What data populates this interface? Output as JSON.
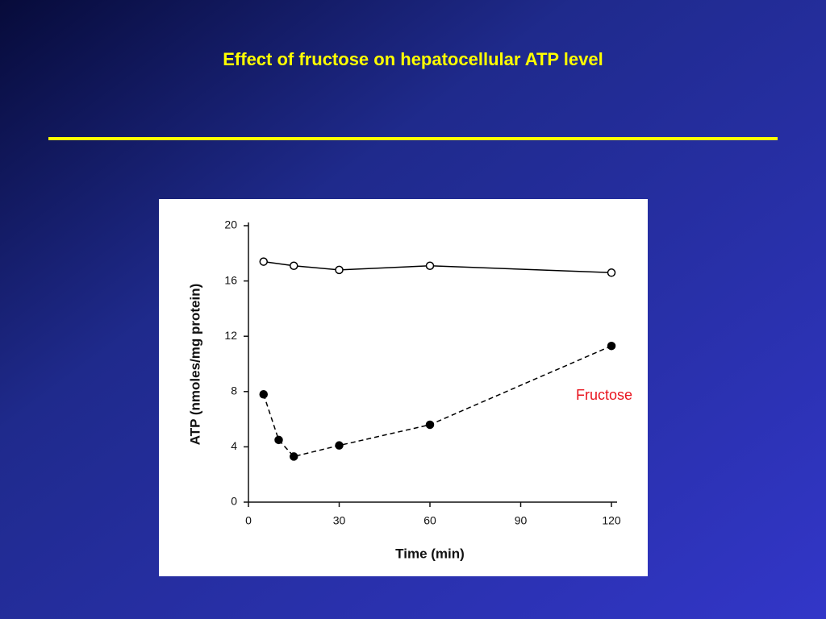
{
  "chart_data": {
    "type": "line",
    "title": "Effect of fructose on hepatocellular ATP level",
    "x_label": "Time (min)",
    "y_label": "ATP (nmoles/mg protein)",
    "xlim": [
      0,
      120
    ],
    "xticks": [
      0,
      30,
      60,
      90,
      120
    ],
    "ylim": [
      0,
      20
    ],
    "yticks": [
      0,
      4,
      8,
      12,
      16,
      20
    ],
    "grid": false,
    "series": [
      {
        "color": "#000000",
        "marker": "open",
        "dash": false,
        "x": [
          5,
          15,
          30,
          60,
          120
        ],
        "values": [
          17.4,
          17.1,
          16.8,
          17.1,
          16.6
        ]
      },
      {
        "name": "Fructose",
        "color": "#000000",
        "label_color": "#e8141e",
        "marker": "filled",
        "dash": true,
        "x": [
          5,
          10,
          15,
          30,
          60,
          120
        ],
        "values": [
          7.8,
          4.5,
          3.3,
          4.1,
          5.6,
          11.3
        ]
      }
    ]
  }
}
